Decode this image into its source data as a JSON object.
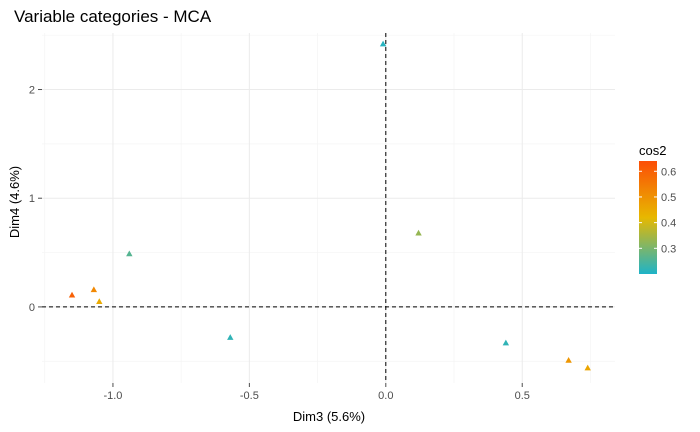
{
  "chart_data": {
    "type": "scatter",
    "title": "Variable categories - MCA",
    "xlabel": "Dim3 (5.6%)",
    "ylabel": "Dim4 (4.6%)",
    "xlim": [
      -1.26,
      0.84
    ],
    "ylim": [
      -0.7,
      2.52
    ],
    "xticks": [
      -1.0,
      -0.5,
      0.0,
      0.5
    ],
    "xtick_labels": [
      "-1.0",
      "-0.5",
      "0.0",
      "0.5"
    ],
    "yticks": [
      0,
      1,
      2
    ],
    "ytick_labels": [
      "0",
      "1",
      "2"
    ],
    "reference_lines": {
      "x": 0,
      "y": 0
    },
    "grid": true,
    "legend": {
      "title": "cos2",
      "placement": "right",
      "min": 0.2,
      "max": 0.64,
      "ticks": [
        0.3,
        0.4,
        0.5,
        0.6
      ],
      "tick_labels": [
        "0.3",
        "0.4",
        "0.5",
        "0.6"
      ],
      "colors": {
        "low": "#1EB3C8",
        "mid": "#E7B800",
        "high": "#FC4E07"
      }
    },
    "points": [
      {
        "x": -0.01,
        "y": 2.42,
        "cos2": 0.21
      },
      {
        "x": 0.12,
        "y": 0.68,
        "cos2": 0.33
      },
      {
        "x": -0.94,
        "y": 0.49,
        "cos2": 0.26
      },
      {
        "x": -1.15,
        "y": 0.11,
        "cos2": 0.6
      },
      {
        "x": -1.07,
        "y": 0.16,
        "cos2": 0.52
      },
      {
        "x": -1.05,
        "y": 0.05,
        "cos2": 0.45
      },
      {
        "x": -0.57,
        "y": -0.28,
        "cos2": 0.22
      },
      {
        "x": 0.44,
        "y": -0.33,
        "cos2": 0.22
      },
      {
        "x": 0.67,
        "y": -0.49,
        "cos2": 0.49
      },
      {
        "x": 0.74,
        "y": -0.56,
        "cos2": 0.46
      }
    ]
  }
}
